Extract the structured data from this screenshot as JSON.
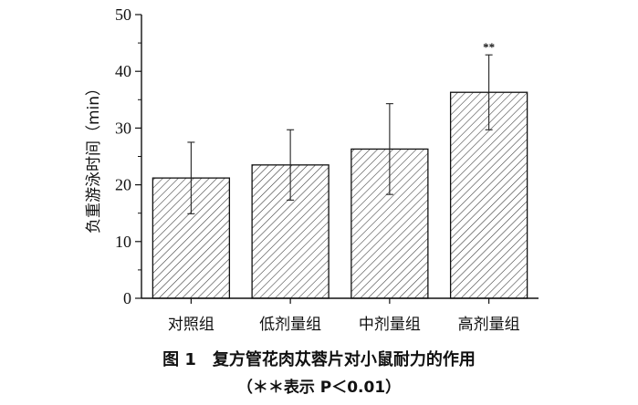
{
  "chart_data": {
    "type": "bar",
    "ylabel": "负重游泳时间（min）",
    "ylim": [
      0,
      50
    ],
    "yticks": [
      0,
      10,
      20,
      30,
      40,
      50
    ],
    "categories": [
      "对照组",
      "低剂量组",
      "中剂量组",
      "高剂量组"
    ],
    "values": [
      21.2,
      23.5,
      26.3,
      36.3
    ],
    "error": [
      6.3,
      6.2,
      8.0,
      6.6
    ],
    "significance": [
      "",
      "",
      "",
      "**"
    ],
    "fill": "diagonal-hatch",
    "grid": false
  },
  "caption": {
    "line1": "图 1　复方管花肉苁蓉片对小鼠耐力的作用",
    "line2": "（＊＊表示 P＜0.01）"
  },
  "colors": {
    "ink": "#111111",
    "background": "#ffffff"
  }
}
